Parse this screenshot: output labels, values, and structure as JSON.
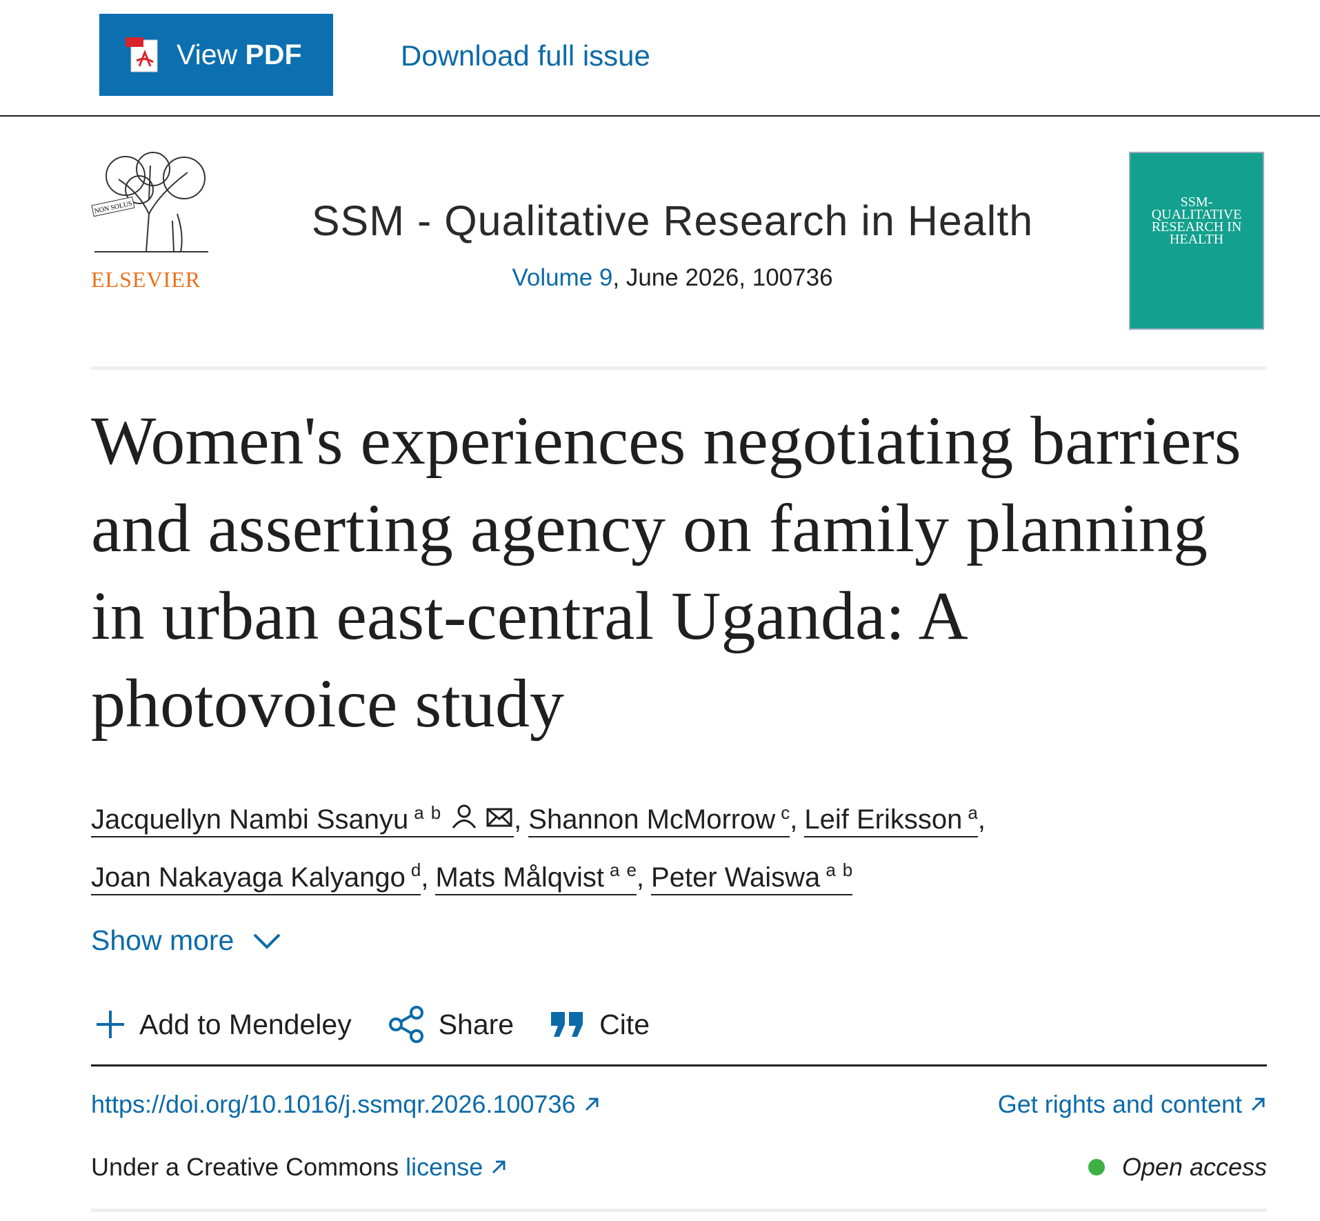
{
  "toolbar": {
    "view_pdf": {
      "plain": "View",
      "bold": "PDF"
    },
    "download": "Download full issue"
  },
  "journal": {
    "logo_motto": "NON SOLUS",
    "publisher": "ELSEVIER",
    "title": "SSM - Qualitative Research in Health",
    "volume": "Volume 9",
    "issue_details": ", June 2026, 100736",
    "cover_title": "SSM-QUALITATIVE RESEARCH IN HEALTH"
  },
  "article": {
    "title": "Women's experiences negotiating barriers and asserting agency on family planning in urban east-central Uganda: A photovoice study",
    "author_separator": ",",
    "authors": [
      {
        "name": "Jacquellyn Nambi Ssanyu",
        "affiliations": [
          "a",
          "b"
        ]
      },
      {
        "name": "Shannon McMorrow",
        "affiliations": [
          "c"
        ]
      },
      {
        "name": "Leif Eriksson",
        "affiliations": [
          "a"
        ]
      },
      {
        "name": "Joan Nakayaga Kalyango",
        "affiliations": [
          "d"
        ]
      },
      {
        "name": "Mats Målqvist",
        "affiliations": [
          "a",
          "e"
        ]
      },
      {
        "name": "Peter Waiswa",
        "affiliations": [
          "a",
          "b"
        ]
      }
    ],
    "show_more": "Show more",
    "actions": [
      "Add to Mendeley",
      "Share",
      "Cite"
    ],
    "doi": "https://doi.org/10.1016/j.ssmqr.2026.100736",
    "rights": "Get rights and content",
    "license_prefix": "Under a Creative Commons",
    "license_link": "license",
    "access": "Open access"
  }
}
